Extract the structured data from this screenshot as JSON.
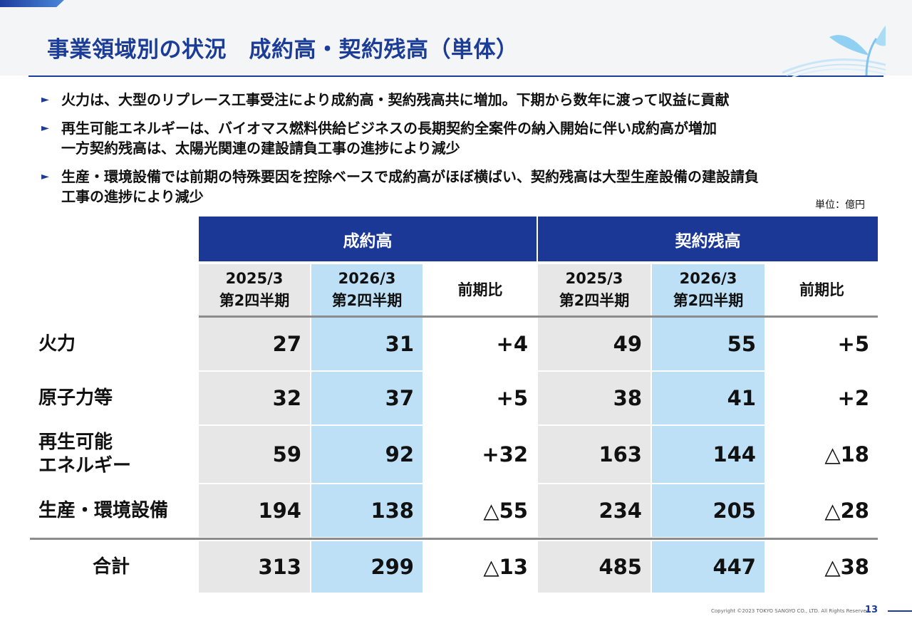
{
  "title": "事業領域別の状況　成約高・契約残高（単体）",
  "bullets": [
    "火力は、大型のリプレース工事受注により成約高・契約残高共に増加。下期から数年に渡って収益に貢献",
    "再生可能エネルギーは、バイオマス燃料供給ビジネスの長期契約全案件の納入開始に伴い成約高が増加\n一方契約残高は、太陽光関連の建設請負工事の進捗により減少",
    "生産・環境設備では前期の特殊要因を控除ベースで成約高がほぼ横ばい、契約残高は大型生産設備の建設請負\n工事の進捗により減少"
  ],
  "unit": "単位：億円",
  "table": {
    "sections": [
      "成約高",
      "契約残高"
    ],
    "column_headers": [
      "2025/3\n第2四半期",
      "2026/3\n第2四半期",
      "前期比",
      "2025/3\n第2四半期",
      "2026/3\n第2四半期",
      "前期比"
    ],
    "rows": [
      {
        "label": "火力",
        "values": [
          "27",
          "31",
          "+4",
          "49",
          "55",
          "+5"
        ]
      },
      {
        "label": "原子力等",
        "values": [
          "32",
          "37",
          "+5",
          "38",
          "41",
          "+2"
        ]
      },
      {
        "label": "再生可能\nエネルギー",
        "values": [
          "59",
          "92",
          "+32",
          "163",
          "144",
          "△18"
        ]
      },
      {
        "label": "生産・環境設備",
        "values": [
          "194",
          "138",
          "△55",
          "234",
          "205",
          "△28"
        ]
      }
    ],
    "total": {
      "label": "合計",
      "values": [
        "313",
        "299",
        "△13",
        "485",
        "447",
        "△38"
      ]
    }
  },
  "footer": {
    "copyright": "Copyright ©2023 TOKYO SANGYO CO., LTD. All Rights Reserved",
    "page": "13"
  },
  "colors": {
    "brand": "#1b3c97",
    "header_bg": "#1b3896",
    "highlight_col": "#bde0f6",
    "gray_col": "#e7e7e7"
  }
}
